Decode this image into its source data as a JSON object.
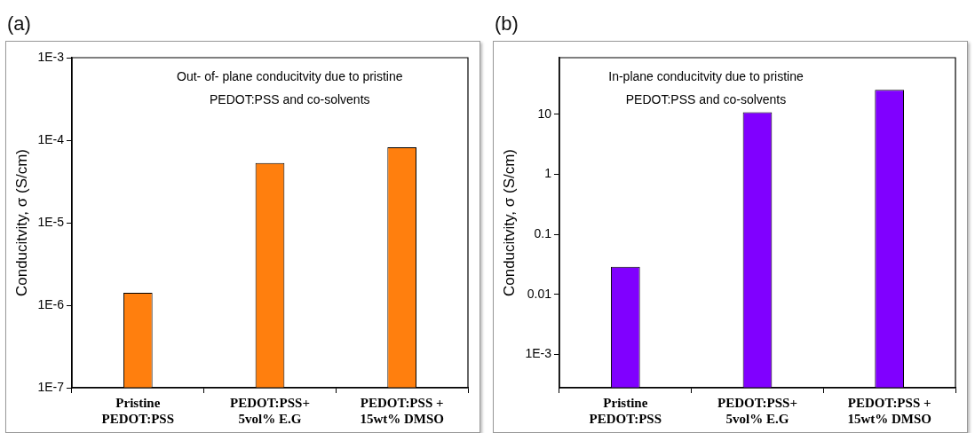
{
  "chart_data": [
    {
      "type": "bar",
      "title": "(a)",
      "ylabel": "Conducitvity, σ (S/cm)",
      "categories": [
        "Pristine\nPEDOT:PSS",
        "PEDOT:PSS+\n5vol% E.G",
        "PEDOT:PSS +\n15wt% DMSO"
      ],
      "values": [
        1.41e-06,
        5.3e-05,
        8.2e-05
      ],
      "color": "#ff7f0e",
      "log": "y",
      "ylim": [
        1e-07,
        0.001
      ],
      "yticks": [
        {
          "value": 1e-07,
          "label": "1E-7"
        },
        {
          "value": 1e-06,
          "label": "1E-6"
        },
        {
          "value": 1e-05,
          "label": "1E-5"
        },
        {
          "value": 0.0001,
          "label": "1E-4"
        },
        {
          "value": 0.001,
          "label": "1E-3"
        }
      ],
      "grid": false,
      "legend": false,
      "annotations": [
        "Out- of- plane conducitvity due to pristine\nPEDOT:PSS and co-solvents"
      ]
    },
    {
      "type": "bar",
      "title": "(b)",
      "ylabel": "Conducitvity, σ (S/cm)",
      "categories": [
        "Pristine\nPEDOT:PSS",
        "PEDOT:PSS+\n5vol% E.G",
        "PEDOT:PSS +\n15wt% DMSO"
      ],
      "values": [
        0.029,
        10.9,
        25.7
      ],
      "color": "#8000ff",
      "log": "y",
      "ylim": [
        0.00028,
        88
      ],
      "yticks": [
        {
          "value": 0.001,
          "label": "1E-3"
        },
        0.01,
        0.1,
        1,
        10
      ],
      "grid": false,
      "legend": false,
      "annotations": [
        "In-plane conducitvity due to pristine\nPEDOT:PSS and co-solvents"
      ]
    }
  ]
}
